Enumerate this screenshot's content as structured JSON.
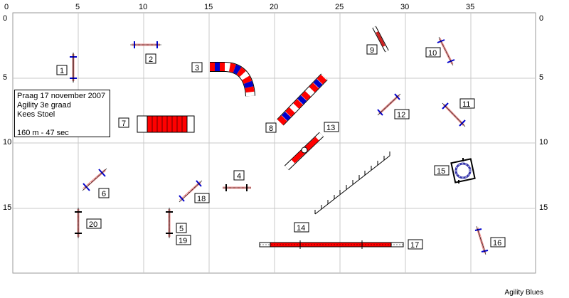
{
  "axis_ticks": {
    "top_x": [
      "0",
      "5",
      "10",
      "15",
      "20",
      "25",
      "30",
      "35"
    ],
    "left_y": [
      "0",
      "5",
      "10",
      "15"
    ],
    "right_y": [
      "0",
      "5",
      "10",
      "15"
    ]
  },
  "info": {
    "line1": "Praag 17 november 2007",
    "line2": "Agility 3e graad",
    "line3": "Kees Stoel",
    "line4": "160 m - 47 sec"
  },
  "obstacles": [
    {
      "num": "1"
    },
    {
      "num": "2"
    },
    {
      "num": "3"
    },
    {
      "num": "4"
    },
    {
      "num": "5"
    },
    {
      "num": "6"
    },
    {
      "num": "7"
    },
    {
      "num": "8"
    },
    {
      "num": "9"
    },
    {
      "num": "10"
    },
    {
      "num": "11"
    },
    {
      "num": "12"
    },
    {
      "num": "13"
    },
    {
      "num": "14"
    },
    {
      "num": "15"
    },
    {
      "num": "16"
    },
    {
      "num": "17"
    },
    {
      "num": "18"
    },
    {
      "num": "19"
    },
    {
      "num": "20"
    }
  ],
  "footer": "Agility Blues",
  "colors": {
    "red": "#ff0000",
    "blue": "#0000cc",
    "pole": "#ee8888",
    "grid": "#c8c8c8",
    "tire": "#3333aa"
  }
}
